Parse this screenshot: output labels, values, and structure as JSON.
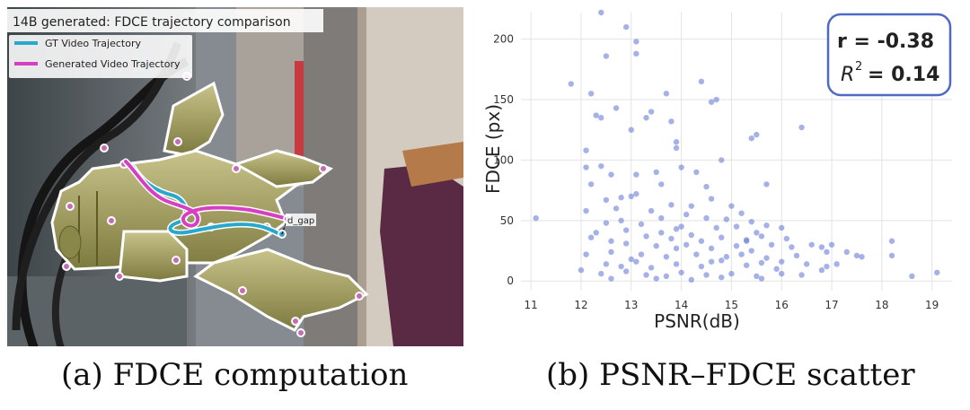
{
  "panel_a": {
    "title": "14B generated: FDCE trajectory comparison",
    "legend": [
      {
        "label": "GT Video Trajectory",
        "color": "#29a9c9"
      },
      {
        "label": "Generated Video Trajectory",
        "color": "#d63fc2"
      }
    ],
    "gap_label": "d_gap",
    "caption": "(a) FDCE computation"
  },
  "panel_b": {
    "caption": "(b) PSNR–FDCE scatter",
    "stats": {
      "r": "r = -0.38",
      "r2_label": "R",
      "r2_exp": "2",
      "r2_value": "= 0.14"
    }
  },
  "chart_data": {
    "type": "scatter",
    "xlabel": "PSNR(dB)",
    "ylabel": "FDCE (px)",
    "xlim": [
      10.8,
      19.4
    ],
    "ylim": [
      -8,
      222
    ],
    "x_ticks": [
      11,
      12,
      13,
      14,
      15,
      16,
      17,
      18,
      19
    ],
    "y_ticks": [
      0,
      50,
      100,
      150,
      200
    ],
    "y_tick_labels": [
      "0",
      "50",
      "100",
      "150",
      "200"
    ],
    "grid": true,
    "point_color": "#6b7fd7",
    "points": [
      [
        12.4,
        222
      ],
      [
        12.9,
        210
      ],
      [
        13.1,
        198
      ],
      [
        13.1,
        188
      ],
      [
        12.5,
        186
      ],
      [
        11.8,
        163
      ],
      [
        12.2,
        155
      ],
      [
        14.4,
        165
      ],
      [
        14.7,
        150
      ],
      [
        14.6,
        148
      ],
      [
        13.7,
        155
      ],
      [
        12.7,
        143
      ],
      [
        13.4,
        140
      ],
      [
        12.4,
        135
      ],
      [
        12.3,
        137
      ],
      [
        13.3,
        135
      ],
      [
        13.8,
        132
      ],
      [
        16.4,
        127
      ],
      [
        13.0,
        125
      ],
      [
        15.5,
        121
      ],
      [
        15.4,
        118
      ],
      [
        12.1,
        108
      ],
      [
        13.9,
        115
      ],
      [
        12.1,
        94
      ],
      [
        12.4,
        95
      ],
      [
        13.9,
        110
      ],
      [
        14.0,
        94
      ],
      [
        14.8,
        100
      ],
      [
        13.5,
        90
      ],
      [
        14.3,
        90
      ],
      [
        13.1,
        88
      ],
      [
        12.6,
        88
      ],
      [
        12.2,
        80
      ],
      [
        13.6,
        80
      ],
      [
        14.5,
        78
      ],
      [
        15.7,
        80
      ],
      [
        13.1,
        72
      ],
      [
        13.0,
        70
      ],
      [
        12.8,
        69
      ],
      [
        12.5,
        67
      ],
      [
        11.1,
        52
      ],
      [
        12.1,
        58
      ],
      [
        13.8,
        63
      ],
      [
        14.6,
        68
      ],
      [
        15.0,
        62
      ],
      [
        13.4,
        58
      ],
      [
        12.5,
        48
      ],
      [
        12.8,
        50
      ],
      [
        13.2,
        47
      ],
      [
        13.6,
        52
      ],
      [
        14.1,
        55
      ],
      [
        14.5,
        52
      ],
      [
        14.9,
        51
      ],
      [
        15.2,
        56
      ],
      [
        15.4,
        49
      ],
      [
        15.7,
        46
      ],
      [
        15.1,
        45
      ],
      [
        13.9,
        43
      ],
      [
        14.7,
        44
      ],
      [
        12.9,
        42
      ],
      [
        16.0,
        44
      ],
      [
        12.2,
        36
      ],
      [
        12.6,
        33
      ],
      [
        13.3,
        37
      ],
      [
        13.8,
        35
      ],
      [
        14.2,
        38
      ],
      [
        14.4,
        33
      ],
      [
        14.8,
        36
      ],
      [
        15.3,
        34
      ],
      [
        15.6,
        37
      ],
      [
        16.1,
        35
      ],
      [
        12.9,
        31
      ],
      [
        13.5,
        29
      ],
      [
        13.9,
        27
      ],
      [
        14.1,
        30
      ],
      [
        14.6,
        27
      ],
      [
        15.1,
        29
      ],
      [
        15.4,
        25
      ],
      [
        15.8,
        30
      ],
      [
        16.2,
        28
      ],
      [
        16.6,
        30
      ],
      [
        16.8,
        28
      ],
      [
        17.0,
        30
      ],
      [
        12.1,
        22
      ],
      [
        12.6,
        24
      ],
      [
        13.2,
        22
      ],
      [
        13.7,
        20
      ],
      [
        14.3,
        22
      ],
      [
        14.9,
        20
      ],
      [
        15.2,
        22
      ],
      [
        15.7,
        19
      ],
      [
        16.3,
        21
      ],
      [
        16.9,
        24
      ],
      [
        17.3,
        24
      ],
      [
        17.5,
        21
      ],
      [
        18.2,
        33
      ],
      [
        18.2,
        21
      ],
      [
        12.5,
        14
      ],
      [
        12.8,
        12
      ],
      [
        13.1,
        16
      ],
      [
        13.4,
        11
      ],
      [
        13.9,
        14
      ],
      [
        14.4,
        12
      ],
      [
        14.8,
        17
      ],
      [
        15.3,
        13
      ],
      [
        15.6,
        15
      ],
      [
        16.0,
        16
      ],
      [
        16.5,
        14
      ],
      [
        16.9,
        12
      ],
      [
        17.6,
        20
      ],
      [
        12.0,
        9
      ],
      [
        12.4,
        6
      ],
      [
        12.9,
        8
      ],
      [
        13.3,
        5
      ],
      [
        13.7,
        4
      ],
      [
        14.0,
        7
      ],
      [
        14.5,
        5
      ],
      [
        15.0,
        6
      ],
      [
        15.5,
        4
      ],
      [
        16.0,
        6
      ],
      [
        16.4,
        5
      ],
      [
        16.8,
        9
      ],
      [
        17.1,
        14
      ],
      [
        18.6,
        4
      ],
      [
        19.1,
        7
      ],
      [
        12.6,
        2
      ],
      [
        13.5,
        2
      ],
      [
        14.2,
        1
      ],
      [
        14.8,
        3
      ],
      [
        15.6,
        2
      ],
      [
        13.0,
        18
      ],
      [
        14.6,
        16
      ],
      [
        15.9,
        10
      ],
      [
        12.3,
        40
      ],
      [
        14.0,
        45
      ],
      [
        15.5,
        40
      ],
      [
        13.6,
        40
      ],
      [
        12.7,
        60
      ],
      [
        14.2,
        62
      ],
      [
        15.3,
        33
      ]
    ]
  }
}
